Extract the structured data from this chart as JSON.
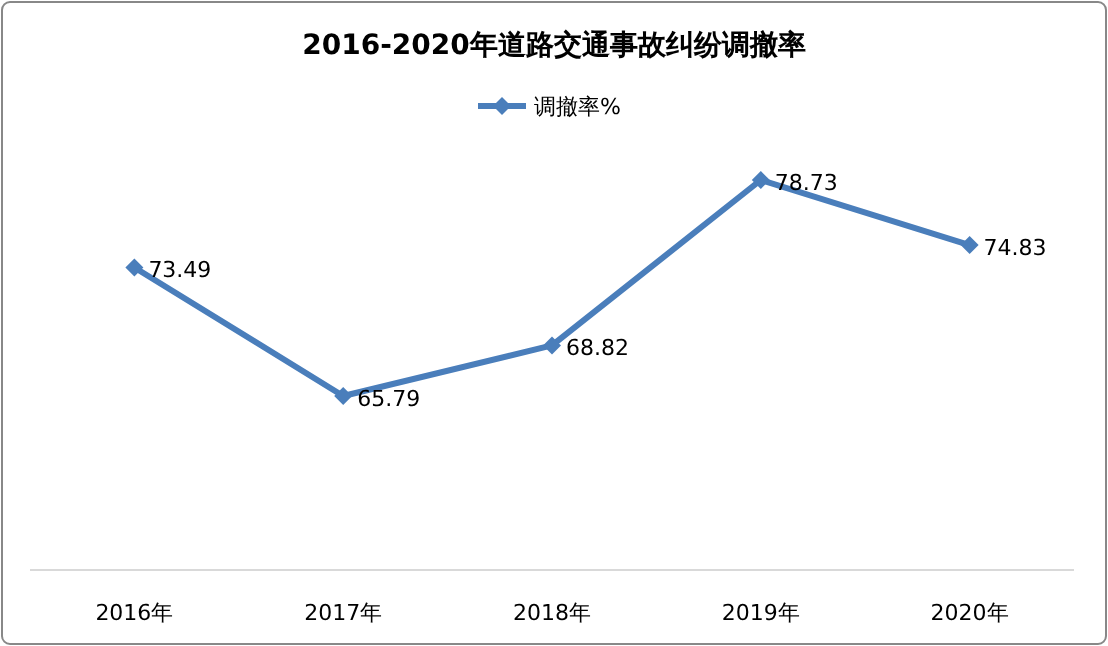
{
  "chart_data": {
    "type": "line",
    "title": "2016-2020年道路交通事故纠纷调撤率",
    "categories": [
      "2016年",
      "2017年",
      "2018年",
      "2019年",
      "2020年"
    ],
    "series": [
      {
        "name": "调撤率%",
        "color": "#4a7ebb",
        "values": [
          73.49,
          65.79,
          68.82,
          78.73,
          74.83
        ]
      }
    ],
    "data_labels": true,
    "legend": "top",
    "marker": "diamond"
  }
}
